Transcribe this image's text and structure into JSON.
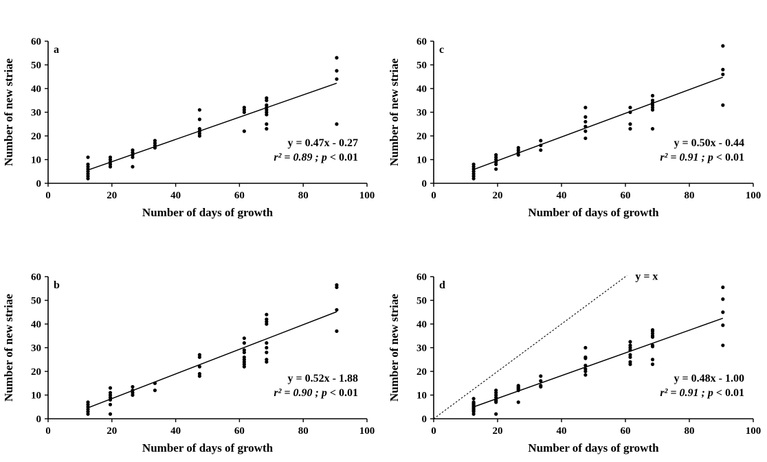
{
  "chart_data": [
    {
      "type": "scatter",
      "panel_label": "a",
      "xlabel": "Number of days of growth",
      "ylabel": "Number of new striae",
      "xlim": [
        0,
        100
      ],
      "ylim": [
        0,
        60
      ],
      "x_ticks": [
        0,
        20,
        40,
        60,
        80,
        100
      ],
      "y_ticks": [
        0,
        10,
        20,
        30,
        40,
        50,
        60
      ],
      "points": [
        [
          12.5,
          2
        ],
        [
          12.5,
          3
        ],
        [
          12.5,
          4
        ],
        [
          12.5,
          5
        ],
        [
          12.5,
          6
        ],
        [
          12.5,
          7
        ],
        [
          12.5,
          8
        ],
        [
          12.5,
          11
        ],
        [
          19.5,
          7
        ],
        [
          19.5,
          8
        ],
        [
          19.5,
          9
        ],
        [
          19.5,
          10
        ],
        [
          19.5,
          11
        ],
        [
          26.5,
          7
        ],
        [
          26.5,
          11
        ],
        [
          26.5,
          12
        ],
        [
          26.5,
          13
        ],
        [
          26.5,
          14
        ],
        [
          33.5,
          15
        ],
        [
          33.5,
          16
        ],
        [
          33.5,
          17
        ],
        [
          33.5,
          18
        ],
        [
          47.5,
          20
        ],
        [
          47.5,
          21
        ],
        [
          47.5,
          22
        ],
        [
          47.5,
          23
        ],
        [
          47.5,
          27
        ],
        [
          47.5,
          31
        ],
        [
          61.5,
          22
        ],
        [
          61.5,
          30
        ],
        [
          61.5,
          31
        ],
        [
          61.5,
          32
        ],
        [
          68.5,
          23
        ],
        [
          68.5,
          25
        ],
        [
          68.5,
          29
        ],
        [
          68.5,
          30
        ],
        [
          68.5,
          31
        ],
        [
          68.5,
          32
        ],
        [
          68.5,
          33
        ],
        [
          68.5,
          35
        ],
        [
          68.5,
          36
        ],
        [
          90.5,
          25
        ],
        [
          90.5,
          44
        ],
        [
          90.5,
          47.5
        ],
        [
          90.5,
          53
        ]
      ],
      "fit": {
        "slope": 0.47,
        "intercept": -0.27,
        "x_range": [
          12.5,
          90.5
        ]
      },
      "equation": "y = 0.47x - 0.27",
      "r2_label": "r² = 0.89 ; ",
      "p_symbol": "p",
      "p_value": " < 0.01"
    },
    {
      "type": "scatter",
      "panel_label": "c",
      "xlabel": "Number of days of growth",
      "ylabel": "Number of new striae",
      "xlim": [
        0,
        100
      ],
      "ylim": [
        0,
        60
      ],
      "x_ticks": [
        0,
        20,
        40,
        60,
        80,
        100
      ],
      "y_ticks": [
        0,
        10,
        20,
        30,
        40,
        50,
        60
      ],
      "points": [
        [
          12.5,
          2
        ],
        [
          12.5,
          3
        ],
        [
          12.5,
          4
        ],
        [
          12.5,
          5
        ],
        [
          12.5,
          6
        ],
        [
          12.5,
          7
        ],
        [
          12.5,
          8
        ],
        [
          19.5,
          6
        ],
        [
          19.5,
          8
        ],
        [
          19.5,
          9
        ],
        [
          19.5,
          10
        ],
        [
          19.5,
          11
        ],
        [
          19.5,
          12
        ],
        [
          26.5,
          12
        ],
        [
          26.5,
          13
        ],
        [
          26.5,
          14
        ],
        [
          26.5,
          15
        ],
        [
          33.5,
          14
        ],
        [
          33.5,
          16
        ],
        [
          33.5,
          18
        ],
        [
          47.5,
          19
        ],
        [
          47.5,
          22
        ],
        [
          47.5,
          24
        ],
        [
          47.5,
          26
        ],
        [
          47.5,
          28
        ],
        [
          47.5,
          32
        ],
        [
          61.5,
          23
        ],
        [
          61.5,
          25
        ],
        [
          61.5,
          30
        ],
        [
          61.5,
          32
        ],
        [
          68.5,
          23
        ],
        [
          68.5,
          31
        ],
        [
          68.5,
          32
        ],
        [
          68.5,
          33
        ],
        [
          68.5,
          34
        ],
        [
          68.5,
          35
        ],
        [
          68.5,
          37
        ],
        [
          90.5,
          33
        ],
        [
          90.5,
          46
        ],
        [
          90.5,
          48
        ],
        [
          90.5,
          58
        ]
      ],
      "fit": {
        "slope": 0.5,
        "intercept": -0.44,
        "x_range": [
          12.5,
          90.5
        ]
      },
      "equation": "y = 0.50x - 0.44",
      "r2_label": "r² = 0.91 ; ",
      "p_symbol": "p",
      "p_value": " < 0.01"
    },
    {
      "type": "scatter",
      "panel_label": "b",
      "xlabel": "Number of days of growth",
      "ylabel": "Number of new striae",
      "xlim": [
        0,
        100
      ],
      "ylim": [
        0,
        60
      ],
      "x_ticks": [
        0,
        20,
        40,
        60,
        80,
        100
      ],
      "y_ticks": [
        0,
        10,
        20,
        30,
        40,
        50,
        60
      ],
      "points": [
        [
          12.5,
          2
        ],
        [
          12.5,
          3
        ],
        [
          12.5,
          4
        ],
        [
          12.5,
          5
        ],
        [
          12.5,
          6
        ],
        [
          12.5,
          7
        ],
        [
          19.5,
          2
        ],
        [
          19.5,
          6
        ],
        [
          19.5,
          8
        ],
        [
          19.5,
          9
        ],
        [
          19.5,
          10
        ],
        [
          19.5,
          11
        ],
        [
          19.5,
          13
        ],
        [
          26.5,
          10
        ],
        [
          26.5,
          11
        ],
        [
          26.5,
          12
        ],
        [
          26.5,
          13.5
        ],
        [
          33.5,
          12
        ],
        [
          33.5,
          15
        ],
        [
          47.5,
          18
        ],
        [
          47.5,
          19
        ],
        [
          47.5,
          22
        ],
        [
          47.5,
          26
        ],
        [
          47.5,
          27
        ],
        [
          61.5,
          22
        ],
        [
          61.5,
          23
        ],
        [
          61.5,
          24
        ],
        [
          61.5,
          25
        ],
        [
          61.5,
          26
        ],
        [
          61.5,
          28
        ],
        [
          61.5,
          29
        ],
        [
          61.5,
          32
        ],
        [
          61.5,
          34
        ],
        [
          68.5,
          24
        ],
        [
          68.5,
          25
        ],
        [
          68.5,
          28
        ],
        [
          68.5,
          30
        ],
        [
          68.5,
          32
        ],
        [
          68.5,
          40
        ],
        [
          68.5,
          41
        ],
        [
          68.5,
          42
        ],
        [
          68.5,
          44
        ],
        [
          90.5,
          37
        ],
        [
          90.5,
          46
        ],
        [
          90.5,
          55.5
        ],
        [
          90.5,
          56.5
        ]
      ],
      "fit": {
        "slope": 0.52,
        "intercept": -1.88,
        "x_range": [
          12.5,
          90.5
        ]
      },
      "equation": "y = 0.52x - 1.88",
      "r2_label": "r² = 0.90 ; ",
      "p_symbol": "p",
      "p_value": " < 0.01"
    },
    {
      "type": "scatter",
      "panel_label": "d",
      "xlabel": "Number of days of growth",
      "ylabel": "Number of new striae",
      "xlim": [
        0,
        100
      ],
      "ylim": [
        0,
        60
      ],
      "x_ticks": [
        0,
        20,
        40,
        60,
        80,
        100
      ],
      "y_ticks": [
        0,
        10,
        20,
        30,
        40,
        50,
        60
      ],
      "points": [
        [
          12.5,
          2
        ],
        [
          12.5,
          3
        ],
        [
          12.5,
          3.5
        ],
        [
          12.5,
          4
        ],
        [
          12.5,
          4.5
        ],
        [
          12.5,
          5
        ],
        [
          12.5,
          5.5
        ],
        [
          12.5,
          6
        ],
        [
          12.5,
          6.5
        ],
        [
          12.5,
          7
        ],
        [
          12.5,
          8.5
        ],
        [
          19.5,
          2
        ],
        [
          19.5,
          7
        ],
        [
          19.5,
          7.5
        ],
        [
          19.5,
          8
        ],
        [
          19.5,
          9
        ],
        [
          19.5,
          10
        ],
        [
          19.5,
          11
        ],
        [
          19.5,
          12
        ],
        [
          26.5,
          7
        ],
        [
          26.5,
          12
        ],
        [
          26.5,
          12.5
        ],
        [
          26.5,
          13
        ],
        [
          26.5,
          13.5
        ],
        [
          26.5,
          14
        ],
        [
          33.5,
          13.5
        ],
        [
          33.5,
          14
        ],
        [
          33.5,
          16
        ],
        [
          33.5,
          18
        ],
        [
          47.5,
          18.5
        ],
        [
          47.5,
          20
        ],
        [
          47.5,
          21
        ],
        [
          47.5,
          22.5
        ],
        [
          47.5,
          25.5
        ],
        [
          47.5,
          26
        ],
        [
          47.5,
          30
        ],
        [
          61.5,
          23
        ],
        [
          61.5,
          24
        ],
        [
          61.5,
          26
        ],
        [
          61.5,
          27
        ],
        [
          61.5,
          29
        ],
        [
          61.5,
          30
        ],
        [
          61.5,
          31
        ],
        [
          61.5,
          32.5
        ],
        [
          68.5,
          23
        ],
        [
          68.5,
          25
        ],
        [
          68.5,
          30.5
        ],
        [
          68.5,
          31
        ],
        [
          68.5,
          34.5
        ],
        [
          68.5,
          35
        ],
        [
          68.5,
          36
        ],
        [
          68.5,
          37
        ],
        [
          68.5,
          37.5
        ],
        [
          90.5,
          31
        ],
        [
          90.5,
          39.5
        ],
        [
          90.5,
          45
        ],
        [
          90.5,
          50.5
        ],
        [
          90.5,
          55.5
        ]
      ],
      "fit": {
        "slope": 0.48,
        "intercept": -1.0,
        "x_range": [
          12.5,
          90.5
        ]
      },
      "reference_line": {
        "slope": 1,
        "intercept": 0,
        "x_range": [
          0,
          60.5
        ],
        "label": "y = x"
      },
      "equation": "y = 0.48x - 1.00",
      "r2_label": "r² = 0.91 ; ",
      "p_symbol": "p",
      "p_value": " < 0.01"
    }
  ]
}
